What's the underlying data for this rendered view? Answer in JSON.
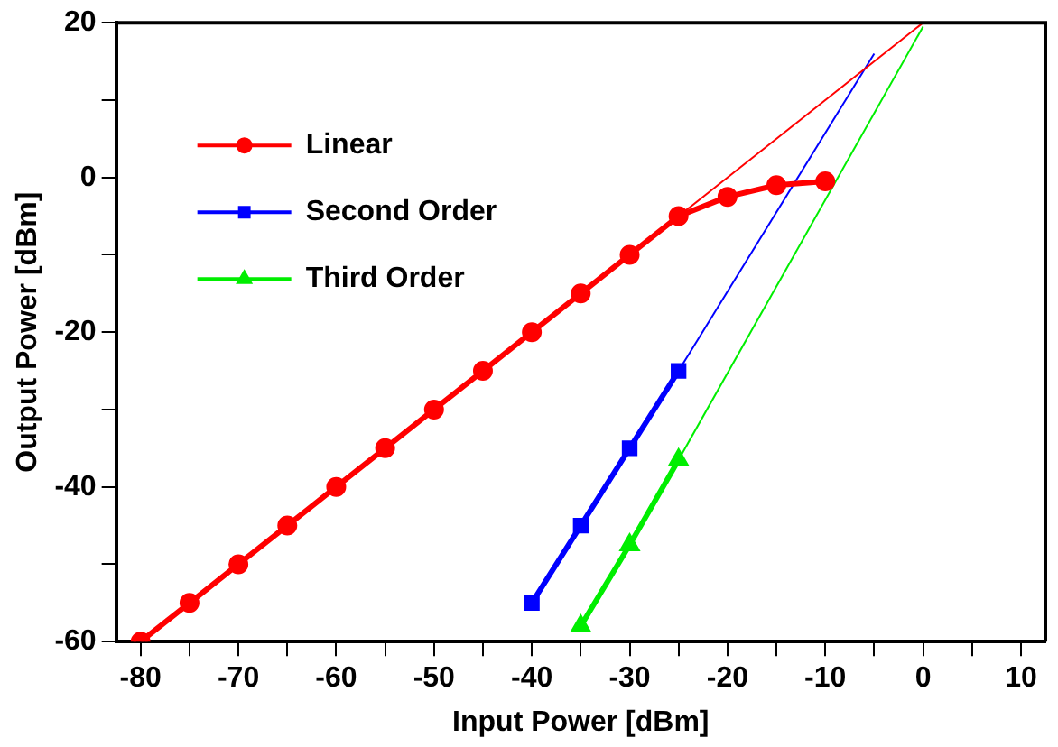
{
  "chart_data": {
    "type": "line",
    "xlabel": "Input Power [dBm]",
    "ylabel": "Output Power [dBm]",
    "xlim": [
      -82.5,
      12.5
    ],
    "xticks": [
      -80,
      {
        "value": -75,
        "label": null
      },
      -70,
      {
        "value": -65,
        "label": null
      },
      -60,
      {
        "value": -55,
        "label": null
      },
      -50,
      {
        "value": -45,
        "label": null
      },
      -40,
      {
        "value": -35,
        "label": null
      },
      -30,
      {
        "value": -25,
        "label": null
      },
      -20,
      {
        "value": -15,
        "label": null
      },
      -10,
      {
        "value": -5,
        "label": null
      },
      0,
      {
        "value": 5,
        "label": null
      },
      10
    ],
    "ylim": [
      -60,
      20
    ],
    "yticks": [
      -60,
      {
        "value": -50,
        "label": null
      },
      -40,
      {
        "value": -30,
        "label": null
      },
      -20,
      {
        "value": -10,
        "label": null
      },
      0,
      {
        "value": 10,
        "label": null
      },
      20
    ],
    "grid": false,
    "legend": "top left",
    "line_style": "solid",
    "series": [
      {
        "name": "Linear",
        "color": "#ff0000",
        "marker": "circle",
        "x": [
          -80,
          -75,
          -70,
          -65,
          -60,
          -55,
          -50,
          -45,
          -40,
          -35,
          -30,
          -25,
          -20,
          -15,
          -10
        ],
        "values": [
          -60,
          -55,
          -50,
          -45,
          -40,
          -35,
          -30,
          -25,
          -20,
          -15,
          -10,
          -5,
          -2.5,
          -1,
          -0.5
        ]
      },
      {
        "name": "Second Order",
        "color": "#0000ff",
        "marker": "square",
        "x": [
          -40,
          -35,
          -30,
          -25
        ],
        "values": [
          -55,
          -45,
          -35,
          -25
        ]
      },
      {
        "name": "Third Order",
        "color": "#00ee00",
        "marker": "triangle",
        "x": [
          -35,
          -30,
          -25
        ],
        "values": [
          -58,
          -47.5,
          -36.5
        ]
      },
      {
        "color": "#ff0000",
        "marker": "none",
        "x": [
          -25,
          0
        ],
        "values": [
          -5,
          20
        ]
      },
      {
        "color": "#0000ff",
        "marker": "none",
        "x": [
          -25,
          -5
        ],
        "values": [
          -25,
          16
        ]
      },
      {
        "color": "#00ee00",
        "marker": "none",
        "x": [
          -25,
          0
        ],
        "values": [
          -36.5,
          19.5
        ]
      }
    ]
  }
}
